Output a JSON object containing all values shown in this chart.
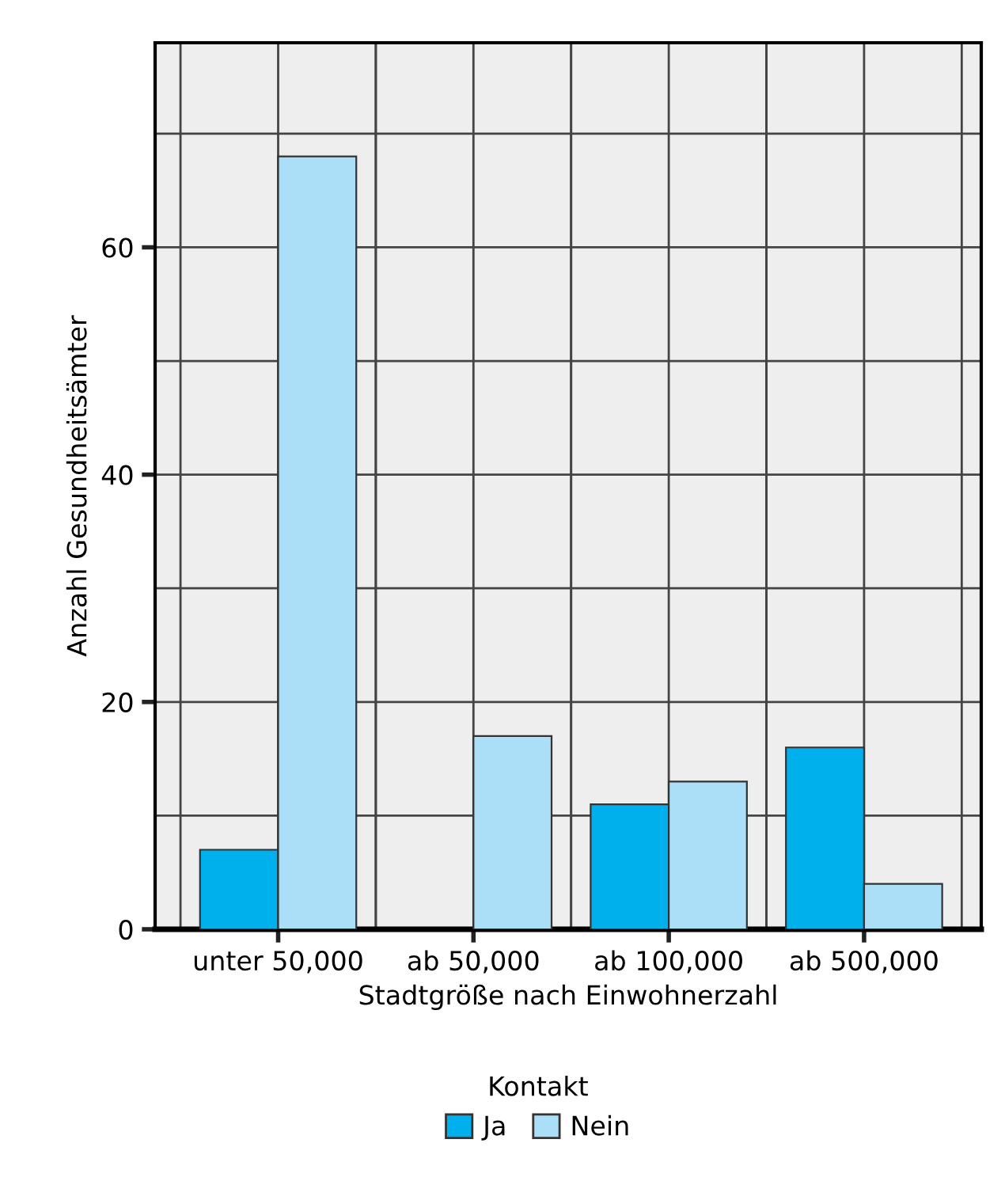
{
  "chart_data": {
    "type": "bar",
    "xlabel": "Stadtgröße nach Einwohnerzahl",
    "ylabel": "Anzahl Gesundheitsämter",
    "legend_title": "Kontakt",
    "categories": [
      "unter 50,000",
      "ab 50,000",
      "ab 100,000",
      "ab 500,000"
    ],
    "series": [
      {
        "name": "Ja",
        "color": "#00b0ec",
        "values": [
          7,
          null,
          11,
          16
        ]
      },
      {
        "name": "Nein",
        "color": "#aadff7",
        "values": [
          68,
          17,
          13,
          4
        ]
      }
    ],
    "ylim": [
      0,
      78
    ],
    "yticks": [
      0,
      {
        "value": 10,
        "label": null
      },
      20,
      {
        "value": 30,
        "label": null
      },
      40,
      {
        "value": 50,
        "label": null
      },
      60,
      {
        "value": 70,
        "label": null
      }
    ],
    "grid": true,
    "legend": "bottom"
  }
}
